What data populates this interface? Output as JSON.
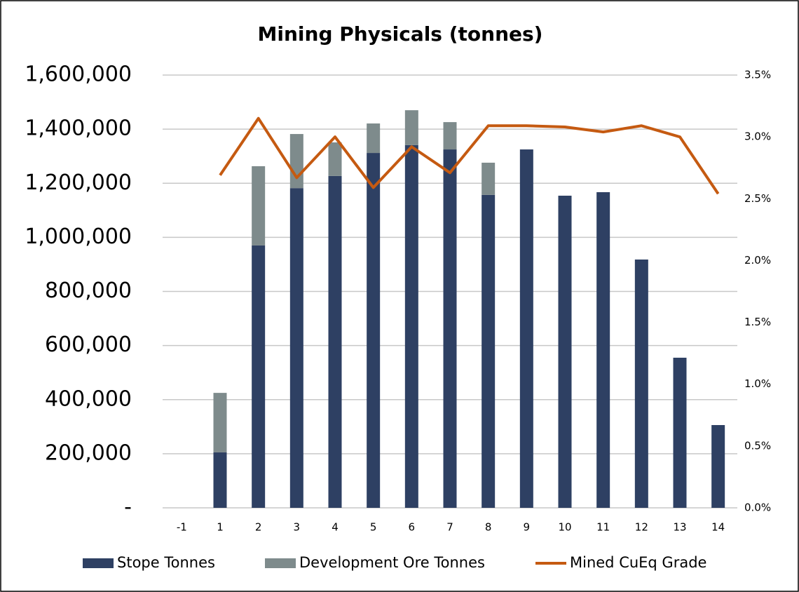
{
  "chart_data": {
    "type": "bar",
    "title": "Mining Physicals (tonnes)",
    "stacked": true,
    "categories": [
      "-1",
      "1",
      "2",
      "3",
      "4",
      "5",
      "6",
      "7",
      "8",
      "9",
      "10",
      "11",
      "12",
      "13",
      "14"
    ],
    "series": [
      {
        "name": "Stope Tonnes",
        "color": "#2e4063",
        "values": [
          0,
          205000,
          970000,
          1182000,
          1227000,
          1312000,
          1341000,
          1325000,
          1157000,
          1325000,
          1154000,
          1167000,
          918000,
          555000,
          306000
        ]
      },
      {
        "name": "Development Ore Tonnes",
        "color": "#7e8b8c",
        "values": [
          0,
          220000,
          293000,
          200000,
          124000,
          109000,
          129000,
          101000,
          119000,
          0,
          0,
          0,
          0,
          0,
          0
        ]
      },
      {
        "name": "Mined CuEq Grade",
        "type": "line",
        "axis": "y2",
        "color": "#c55a11",
        "values": [
          null,
          2.69,
          3.15,
          2.67,
          3.0,
          2.59,
          2.92,
          2.71,
          3.09,
          3.09,
          3.08,
          3.04,
          3.09,
          3.0,
          2.54
        ]
      }
    ],
    "ylim": [
      0,
      1600000
    ],
    "yticks": [
      {
        "value": 0,
        "label": "-"
      },
      {
        "value": 200000,
        "label": "200,000"
      },
      {
        "value": 400000,
        "label": "400,000"
      },
      {
        "value": 600000,
        "label": "600,000"
      },
      {
        "value": 800000,
        "label": "800,000"
      },
      {
        "value": 1000000,
        "label": "1,000,000"
      },
      {
        "value": 1200000,
        "label": "1,200,000"
      },
      {
        "value": 1400000,
        "label": "1,400,000"
      },
      {
        "value": 1600000,
        "label": "1,600,000"
      }
    ],
    "y2lim": [
      0,
      3.5
    ],
    "y2ticks": [
      {
        "value": 0,
        "label": "0.0%"
      },
      {
        "value": 0.5,
        "label": "0.5%"
      },
      {
        "value": 1,
        "label": "1.0%"
      },
      {
        "value": 1.5,
        "label": "1.5%"
      },
      {
        "value": 2,
        "label": "2.0%"
      },
      {
        "value": 2.5,
        "label": "2.5%"
      },
      {
        "value": 3,
        "label": "3.0%"
      },
      {
        "value": 3.5,
        "label": "3.5%"
      }
    ],
    "grid": true,
    "legend": "bottom"
  }
}
